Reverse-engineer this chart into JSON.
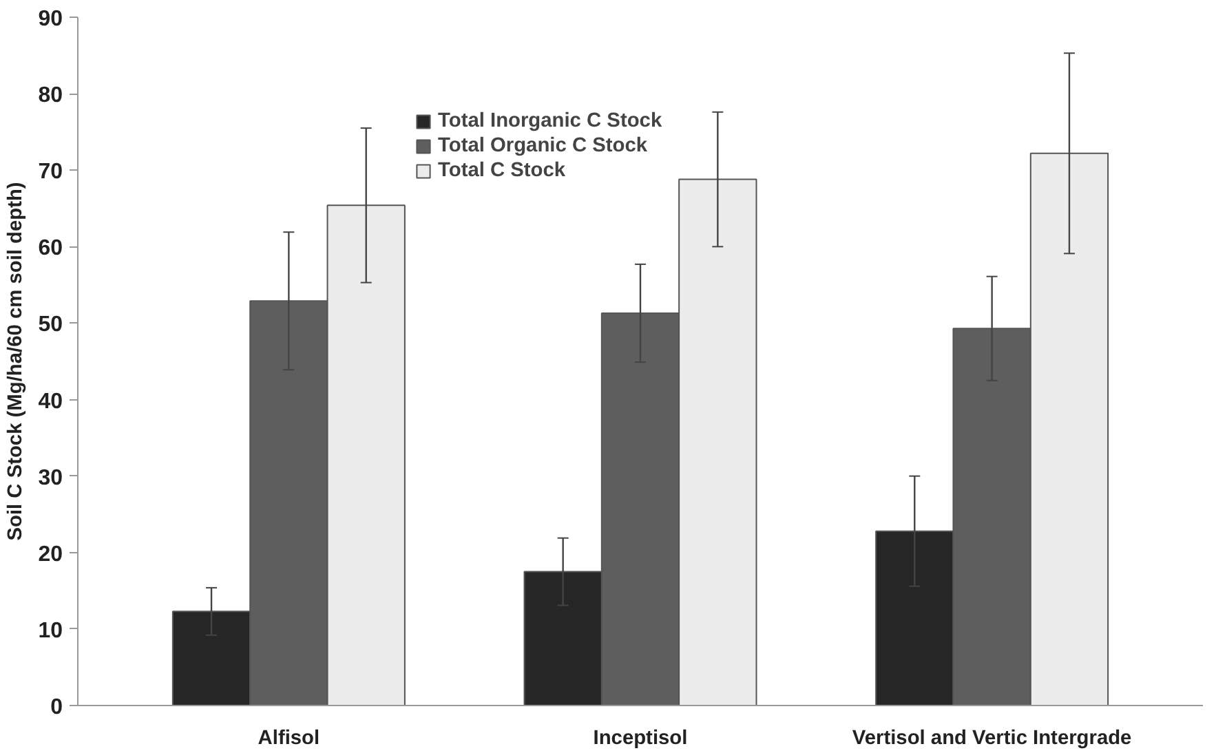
{
  "chart_data": {
    "type": "bar",
    "ylabel": "Soil C Stock (Mg/ha/60 cm soil depth)",
    "categories": [
      "Alfisol",
      "Inceptisol",
      "Vertisol and Vertic Intergrade"
    ],
    "series": [
      {
        "name": "Total Inorganic C Stock",
        "color": "#262626",
        "values": [
          12.3,
          17.5,
          22.8
        ],
        "errors": [
          3.1,
          4.4,
          7.2
        ]
      },
      {
        "name": "Total Organic C Stock",
        "color": "#5e5e5e",
        "values": [
          52.9,
          51.3,
          49.3
        ],
        "errors": [
          9.0,
          6.4,
          6.8
        ]
      },
      {
        "name": "Total C Stock",
        "color": "#ececec",
        "values": [
          65.4,
          68.8,
          72.2
        ],
        "errors": [
          10.1,
          8.8,
          13.1
        ]
      }
    ],
    "ylim": [
      0,
      90
    ],
    "yticks": [
      0,
      10,
      20,
      30,
      40,
      50,
      60,
      70,
      80,
      90
    ],
    "grid": false,
    "legend": "top"
  }
}
